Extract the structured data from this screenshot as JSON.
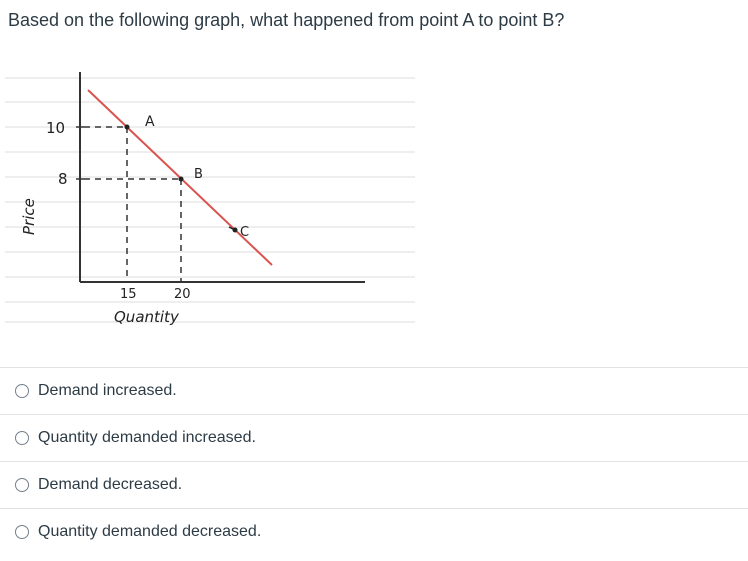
{
  "question": {
    "text": "Based on the following graph, what happened from point A to point B?"
  },
  "graph": {
    "y_axis_label": "Price",
    "x_axis_label": "Quantity",
    "y_ticks": [
      "10",
      "8"
    ],
    "x_ticks": [
      "15",
      "20"
    ],
    "point_labels": [
      "A",
      "B",
      "C"
    ],
    "line_color": "#d9534f"
  },
  "answers": [
    {
      "label": "Demand increased."
    },
    {
      "label": "Quantity demanded increased."
    },
    {
      "label": "Demand decreased."
    },
    {
      "label": "Quantity demanded decreased."
    }
  ]
}
